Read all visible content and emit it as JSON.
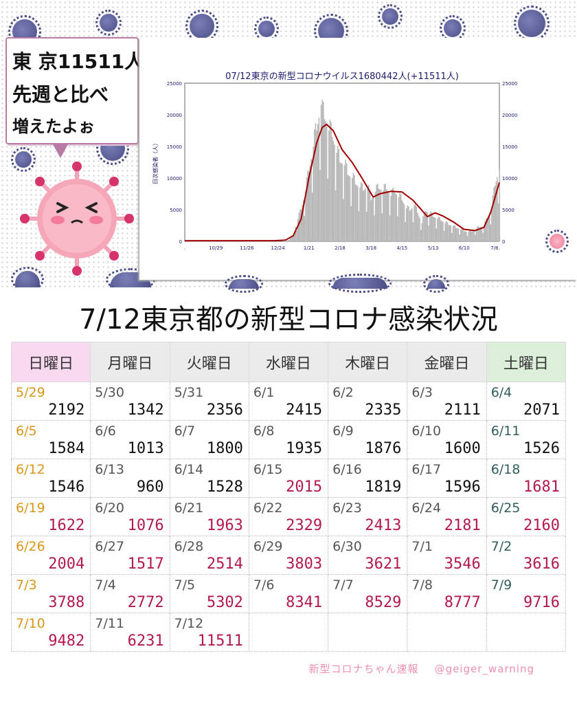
{
  "speech": {
    "line1": "東 京11511人",
    "line2": "先週と比べ",
    "line3": "増えたよぉ"
  },
  "page_title": "7/12東京都の新型コロナ感染状況",
  "weekdays": [
    "日曜日",
    "月曜日",
    "火曜日",
    "水曜日",
    "木曜日",
    "金曜日",
    "土曜日"
  ],
  "calendar_rows": [
    [
      {
        "date": "5/29",
        "value": "2192",
        "up": false
      },
      {
        "date": "5/30",
        "value": "1342",
        "up": false
      },
      {
        "date": "5/31",
        "value": "2356",
        "up": false
      },
      {
        "date": "6/1",
        "value": "2415",
        "up": false
      },
      {
        "date": "6/2",
        "value": "2335",
        "up": false
      },
      {
        "date": "6/3",
        "value": "2111",
        "up": false
      },
      {
        "date": "6/4",
        "value": "2071",
        "up": false
      }
    ],
    [
      {
        "date": "6/5",
        "value": "1584",
        "up": false
      },
      {
        "date": "6/6",
        "value": "1013",
        "up": false
      },
      {
        "date": "6/7",
        "value": "1800",
        "up": false
      },
      {
        "date": "6/8",
        "value": "1935",
        "up": false
      },
      {
        "date": "6/9",
        "value": "1876",
        "up": false
      },
      {
        "date": "6/10",
        "value": "1600",
        "up": false
      },
      {
        "date": "6/11",
        "value": "1526",
        "up": false
      }
    ],
    [
      {
        "date": "6/12",
        "value": "1546",
        "up": false
      },
      {
        "date": "6/13",
        "value": "960",
        "up": false
      },
      {
        "date": "6/14",
        "value": "1528",
        "up": false
      },
      {
        "date": "6/15",
        "value": "2015",
        "up": true
      },
      {
        "date": "6/16",
        "value": "1819",
        "up": false
      },
      {
        "date": "6/17",
        "value": "1596",
        "up": false
      },
      {
        "date": "6/18",
        "value": "1681",
        "up": true
      }
    ],
    [
      {
        "date": "6/19",
        "value": "1622",
        "up": true
      },
      {
        "date": "6/20",
        "value": "1076",
        "up": true
      },
      {
        "date": "6/21",
        "value": "1963",
        "up": true
      },
      {
        "date": "6/22",
        "value": "2329",
        "up": true
      },
      {
        "date": "6/23",
        "value": "2413",
        "up": true
      },
      {
        "date": "6/24",
        "value": "2181",
        "up": true
      },
      {
        "date": "6/25",
        "value": "2160",
        "up": true
      }
    ],
    [
      {
        "date": "6/26",
        "value": "2004",
        "up": true
      },
      {
        "date": "6/27",
        "value": "1517",
        "up": true
      },
      {
        "date": "6/28",
        "value": "2514",
        "up": true
      },
      {
        "date": "6/29",
        "value": "3803",
        "up": true
      },
      {
        "date": "6/30",
        "value": "3621",
        "up": true
      },
      {
        "date": "7/1",
        "value": "3546",
        "up": true
      },
      {
        "date": "7/2",
        "value": "3616",
        "up": true
      }
    ],
    [
      {
        "date": "7/3",
        "value": "3788",
        "up": true
      },
      {
        "date": "7/4",
        "value": "2772",
        "up": true
      },
      {
        "date": "7/5",
        "value": "5302",
        "up": true
      },
      {
        "date": "7/6",
        "value": "8341",
        "up": true
      },
      {
        "date": "7/7",
        "value": "8529",
        "up": true
      },
      {
        "date": "7/8",
        "value": "8777",
        "up": true
      },
      {
        "date": "7/9",
        "value": "9716",
        "up": true
      }
    ],
    [
      {
        "date": "7/10",
        "value": "9482",
        "up": true
      },
      {
        "date": "7/11",
        "value": "6231",
        "up": true
      },
      {
        "date": "7/12",
        "value": "11511",
        "up": true
      },
      null,
      null,
      null,
      null
    ]
  ],
  "footer": {
    "credit": "新型コロナちゃん速報",
    "handle": "@geiger_warning"
  },
  "colors": {
    "bar": "#b8b8b8",
    "line": "#a00000",
    "up_value": "#b3194a",
    "sunday": "#d9961a",
    "saturday": "#2f5d5d",
    "title_text": "#1a1a6e"
  },
  "chart_data": {
    "type": "bar",
    "title": "07/12東京の新型コロナウイルス1680442人(+11511人)",
    "ylabel": "日次感染者（人）",
    "ylim": [
      0,
      25000
    ],
    "yticks": [
      0,
      5000,
      10000,
      15000,
      20000,
      25000
    ],
    "yticklabels": [
      "0",
      "5000",
      "10000",
      "15000",
      "20000",
      "25000"
    ],
    "xticklabels": [
      ".",
      "10/29",
      "11/26",
      "12/24",
      "1/21",
      "2/18",
      "3/18",
      "4/15",
      "5/13",
      "6/10",
      "7/8."
    ],
    "x_start": "2021-10-01",
    "x_end": "2022-07-12",
    "series": [
      {
        "name": "",
        "kind": "bar",
        "x": [
          "2021-10-01",
          "2021-11-01",
          "2021-12-01",
          "2021-12-25",
          "2022-01-01",
          "2022-01-07",
          "2022-01-10",
          "2022-01-14",
          "2022-01-18",
          "2022-01-21",
          "2022-01-25",
          "2022-01-28",
          "2022-02-01",
          "2022-02-02",
          "2022-02-05",
          "2022-02-08",
          "2022-02-11",
          "2022-02-15",
          "2022-02-18",
          "2022-02-22",
          "2022-02-25",
          "2022-03-01",
          "2022-03-04",
          "2022-03-08",
          "2022-03-11",
          "2022-03-15",
          "2022-03-18",
          "2022-03-22",
          "2022-03-25",
          "2022-03-29",
          "2022-04-01",
          "2022-04-05",
          "2022-04-08",
          "2022-04-12",
          "2022-04-15",
          "2022-04-19",
          "2022-04-22",
          "2022-04-26",
          "2022-04-29",
          "2022-05-03",
          "2022-05-06",
          "2022-05-10",
          "2022-05-13",
          "2022-05-17",
          "2022-05-20",
          "2022-05-24",
          "2022-05-27",
          "2022-05-31",
          "2022-06-03",
          "2022-06-07",
          "2022-06-10",
          "2022-06-14",
          "2022-06-17",
          "2022-06-21",
          "2022-06-24",
          "2022-06-28",
          "2022-07-01",
          "2022-07-05",
          "2022-07-08",
          "2022-07-12"
        ],
        "y": [
          50,
          30,
          20,
          60,
          80,
          900,
          3000,
          5000,
          8000,
          11000,
          15000,
          17500,
          21600,
          20000,
          19000,
          17500,
          16500,
          14000,
          12500,
          12000,
          10500,
          10000,
          9000,
          8500,
          8000,
          8700,
          6500,
          7800,
          8300,
          8000,
          8200,
          7200,
          7800,
          7000,
          6500,
          5200,
          4800,
          5700,
          4500,
          2900,
          4800,
          4400,
          3900,
          3600,
          3300,
          2900,
          2600,
          2400,
          2100,
          1900,
          1600,
          1500,
          1550,
          2000,
          2200,
          2500,
          3600,
          5300,
          8800,
          11511
        ]
      },
      {
        "name": "",
        "kind": "line",
        "x": [
          "2021-10-01",
          "2021-12-20",
          "2021-12-31",
          "2022-01-07",
          "2022-01-14",
          "2022-01-21",
          "2022-01-28",
          "2022-02-02",
          "2022-02-06",
          "2022-02-12",
          "2022-02-20",
          "2022-03-01",
          "2022-03-10",
          "2022-03-20",
          "2022-03-26",
          "2022-04-05",
          "2022-04-15",
          "2022-04-25",
          "2022-05-01",
          "2022-05-08",
          "2022-05-15",
          "2022-05-22",
          "2022-06-01",
          "2022-06-10",
          "2022-06-20",
          "2022-06-28",
          "2022-07-04",
          "2022-07-12"
        ],
        "y": [
          100,
          100,
          200,
          900,
          3500,
          10000,
          15500,
          18000,
          18500,
          17500,
          14500,
          12500,
          10000,
          7000,
          7500,
          7900,
          7800,
          6500,
          5300,
          3900,
          4500,
          4000,
          3000,
          1900,
          1700,
          2200,
          4500,
          9300
        ]
      }
    ]
  }
}
